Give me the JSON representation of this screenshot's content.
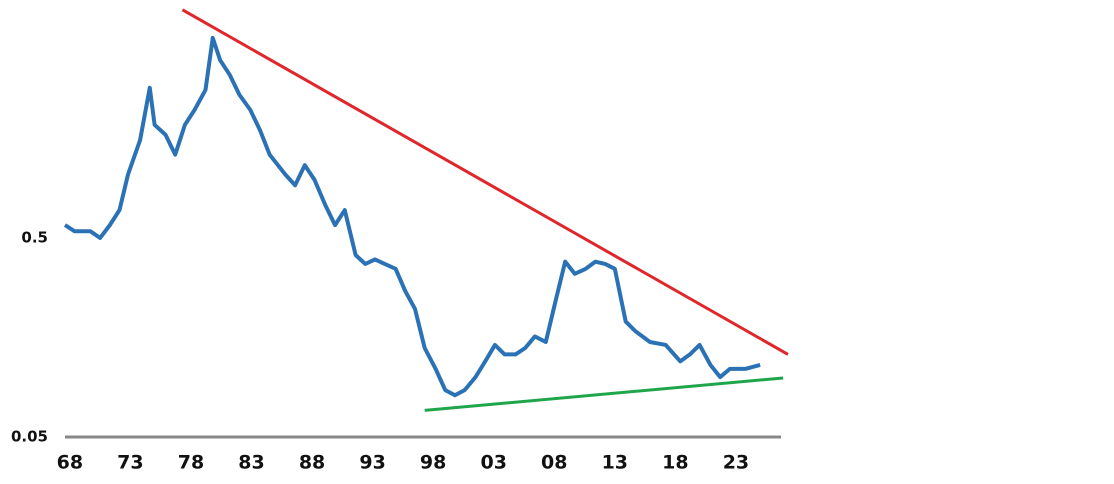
{
  "chart_data": {
    "type": "line",
    "log_scale": true,
    "x": [
      1967.6,
      1968.4,
      1969.7,
      1970.5,
      1971.3,
      1972.1,
      1972.8,
      1973.8,
      1974.6,
      1975.0,
      1975.9,
      1976.7,
      1977.5,
      1978.3,
      1979.2,
      1979.8,
      1980.4,
      1981.2,
      1982.0,
      1982.9,
      1983.7,
      1984.5,
      1985.8,
      1986.6,
      1987.4,
      1988.2,
      1989.1,
      1989.9,
      1990.7,
      1991.6,
      1992.4,
      1993.2,
      1994.0,
      1994.9,
      1995.7,
      1996.5,
      1997.3,
      1998.2,
      1999.0,
      1999.8,
      2000.6,
      2001.5,
      2002.3,
      2003.1,
      2003.9,
      2004.8,
      2005.6,
      2006.4,
      2007.3,
      2008.1,
      2008.9,
      2009.7,
      2010.6,
      2011.4,
      2012.2,
      2013.0,
      2013.9,
      2014.7,
      2015.9,
      2017.2,
      2018.4,
      2019.2,
      2020.0,
      2020.9,
      2021.7,
      2022.5,
      2023.8,
      2025.0
    ],
    "series": [
      {
        "color": "#2a72b5",
        "values": [
          0.58,
          0.54,
          0.54,
          0.5,
          0.58,
          0.69,
          1.04,
          1.55,
          2.84,
          1.85,
          1.65,
          1.31,
          1.85,
          2.2,
          2.77,
          5.06,
          3.92,
          3.3,
          2.62,
          2.2,
          1.74,
          1.31,
          1.04,
          0.92,
          1.16,
          0.98,
          0.73,
          0.58,
          0.69,
          0.41,
          0.37,
          0.39,
          0.37,
          0.35,
          0.27,
          0.22,
          0.14,
          0.11,
          0.086,
          0.081,
          0.086,
          0.1,
          0.12,
          0.145,
          0.13,
          0.13,
          0.14,
          0.16,
          0.15,
          0.24,
          0.38,
          0.33,
          0.35,
          0.38,
          0.37,
          0.35,
          0.19,
          0.17,
          0.15,
          0.145,
          0.12,
          0.13,
          0.145,
          0.115,
          0.1,
          0.11,
          0.11,
          0.115
        ]
      }
    ],
    "trend_lines": [
      {
        "color": "#e0262b",
        "x": [
          1977.3,
          2027.3
        ],
        "values": [
          7.0,
          0.13
        ]
      },
      {
        "color": "#1fa64a",
        "x": [
          1997.3,
          2026.9
        ],
        "values": [
          0.068,
          0.099
        ]
      }
    ],
    "xlim": [
      1967.6,
      2027.3
    ],
    "ylim": [
      0.05,
      7.84
    ],
    "xticks": [
      {
        "value": 1968,
        "label": "68"
      },
      {
        "value": 1973,
        "label": "73"
      },
      {
        "value": 1978,
        "label": "78"
      },
      {
        "value": 1983,
        "label": "83"
      },
      {
        "value": 1988,
        "label": "88"
      },
      {
        "value": 1993,
        "label": "93"
      },
      {
        "value": 1998,
        "label": "98"
      },
      {
        "value": 2003,
        "label": "03"
      },
      {
        "value": 2008,
        "label": "08"
      },
      {
        "value": 2013,
        "label": "13"
      },
      {
        "value": 2018,
        "label": "18"
      },
      {
        "value": 2023,
        "label": "23"
      }
    ],
    "yticks": [
      0.05,
      0.5
    ]
  }
}
